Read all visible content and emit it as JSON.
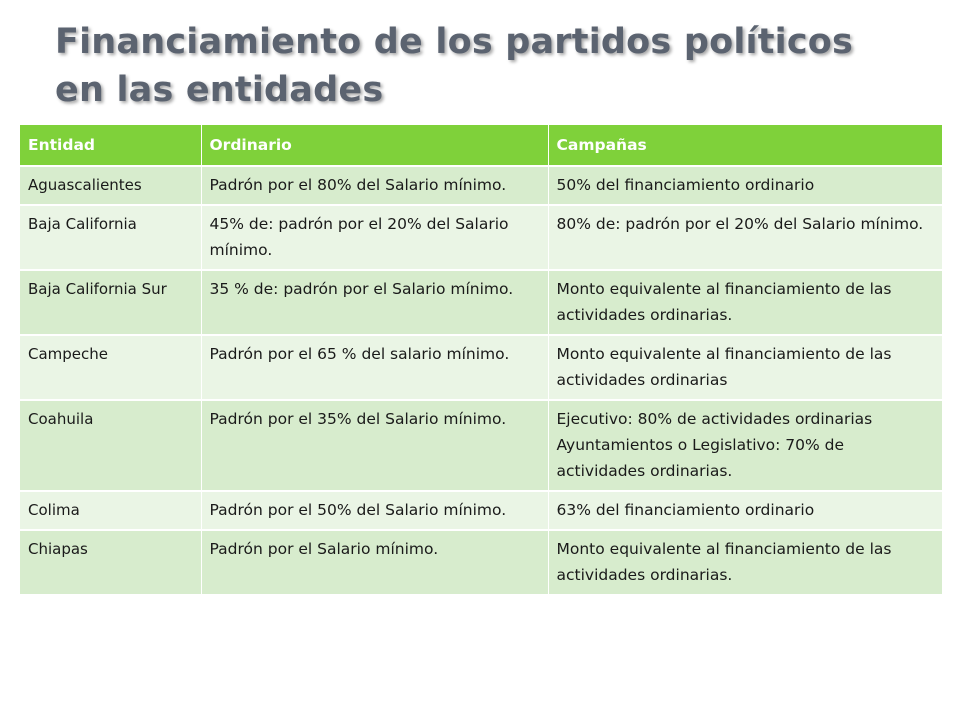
{
  "title": {
    "line1": "Financiamiento de los partidos políticos",
    "line2": "en las entidades"
  },
  "table": {
    "headers": [
      "Entidad",
      "Ordinario",
      "Campañas"
    ],
    "rows": [
      {
        "entidad": "Aguascalientes",
        "ordinario": "Padrón por el 80% del Salario mínimo.",
        "campanas": "50% del financiamiento ordinario"
      },
      {
        "entidad": "Baja California",
        "ordinario": "45% de: padrón por el 20% del Salario mínimo.",
        "campanas": "80% de: padrón por el 20% del Salario mínimo."
      },
      {
        "entidad": "Baja California Sur",
        "ordinario": "35 % de: padrón por el Salario mínimo.",
        "campanas": "Monto equivalente al financiamiento de las actividades ordinarias."
      },
      {
        "entidad": "Campeche",
        "ordinario": "Padrón por el 65 % del salario mínimo.",
        "campanas": "Monto equivalente al financiamiento de las actividades ordinarias"
      },
      {
        "entidad": "Coahuila",
        "ordinario": "Padrón por el 35% del Salario mínimo.",
        "campanas_lines": [
          "Ejecutivo: 80% de actividades ordinarias",
          "Ayuntamientos o Legislativo: 70% de actividades ordinarias."
        ]
      },
      {
        "entidad": "Colima",
        "ordinario": "Padrón por el 50% del Salario mínimo.",
        "campanas": "63% del financiamiento ordinario"
      },
      {
        "entidad": "Chiapas",
        "ordinario": "Padrón por el Salario mínimo.",
        "campanas": "Monto equivalente al financiamiento de las actividades ordinarias."
      }
    ]
  },
  "colors": {
    "title": "#5b6370",
    "header_bg": "#7fd13a",
    "header_text": "#ffffff",
    "row_odd_bg": "#d7eccd",
    "row_even_bg": "#eaf5e5"
  }
}
